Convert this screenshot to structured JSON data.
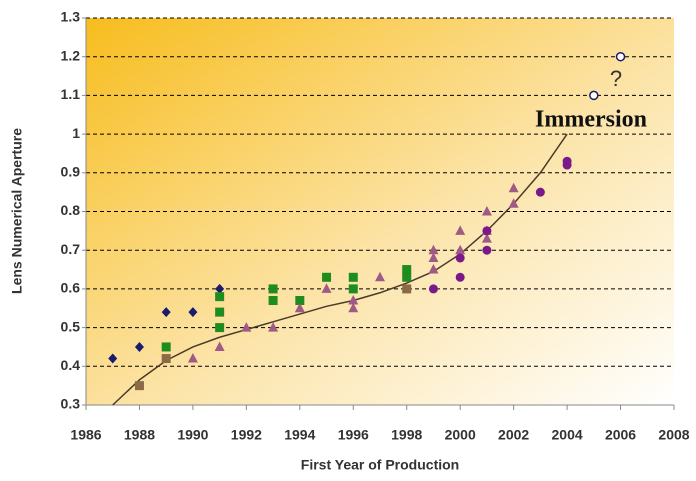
{
  "chart_data": {
    "type": "scatter",
    "xlabel": "First Year of Production",
    "ylabel": "Lens Numerical Aperture",
    "xlim": [
      1986,
      2008
    ],
    "xticks": [
      1986,
      1988,
      1990,
      1992,
      1994,
      1996,
      1998,
      2000,
      2002,
      2004,
      2006,
      2008
    ],
    "ylim": [
      0.3,
      1.3
    ],
    "yticks": [
      0.3,
      0.4,
      0.5,
      0.6,
      0.7,
      0.8,
      0.9,
      1,
      1.1,
      1.2,
      1.3
    ],
    "grid": true,
    "series": [
      {
        "color": "#1a1a6e",
        "marker": "diamond",
        "x": [
          1987,
          1988,
          1989,
          1990,
          1991
        ],
        "values": [
          0.42,
          0.45,
          0.54,
          0.54,
          0.6
        ]
      },
      {
        "color": "#1e8c1e",
        "marker": "square",
        "x": [
          1989,
          1991,
          1991,
          1991,
          1993,
          1993,
          1994,
          1995,
          1996,
          1996,
          1998,
          1998
        ],
        "values": [
          0.45,
          0.58,
          0.54,
          0.5,
          0.6,
          0.57,
          0.57,
          0.63,
          0.63,
          0.6,
          0.65,
          0.63
        ]
      },
      {
        "color": "#8c6a46",
        "marker": "square",
        "x": [
          1988,
          1989,
          1998
        ],
        "values": [
          0.35,
          0.42,
          0.6
        ]
      },
      {
        "color": "#a05a86",
        "marker": "triangle",
        "x": [
          1990,
          1991,
          1992,
          1993,
          1994,
          1995,
          1996,
          1996,
          1997,
          1999,
          1999,
          1999,
          2000,
          2000,
          2001,
          2001,
          2001,
          2002,
          2002
        ],
        "values": [
          0.42,
          0.45,
          0.5,
          0.5,
          0.55,
          0.6,
          0.57,
          0.55,
          0.63,
          0.7,
          0.68,
          0.65,
          0.75,
          0.7,
          0.8,
          0.75,
          0.73,
          0.86,
          0.82
        ]
      },
      {
        "color": "#7a1a8a",
        "marker": "circle",
        "x": [
          1999,
          2000,
          2000,
          2001,
          2001,
          2003,
          2004,
          2004
        ],
        "values": [
          0.6,
          0.68,
          0.63,
          0.75,
          0.7,
          0.85,
          0.93,
          0.92
        ]
      },
      {
        "color": "#1a1a6e",
        "marker": "open-circle",
        "x": [
          2005,
          2006
        ],
        "values": [
          1.1,
          1.2
        ]
      }
    ],
    "trend": {
      "color": "#4a3a2a",
      "x": [
        1987,
        1988,
        1989,
        1990,
        1991,
        1992,
        1993,
        1994,
        1995,
        1996,
        1997,
        1998,
        1999,
        2000,
        2001,
        2002,
        2003,
        2004
      ],
      "values": [
        0.3,
        0.365,
        0.415,
        0.45,
        0.475,
        0.495,
        0.515,
        0.535,
        0.555,
        0.57,
        0.59,
        0.615,
        0.645,
        0.69,
        0.75,
        0.82,
        0.9,
        1.0
      ]
    },
    "annotations": [
      "Immersion",
      "?"
    ]
  }
}
